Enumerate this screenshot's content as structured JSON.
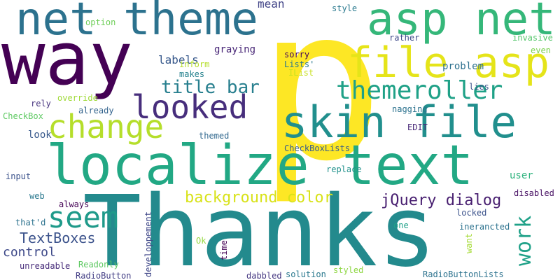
{
  "words": [
    {
      "id": "p",
      "text": "p",
      "color": "#fde725",
      "vertical": false
    },
    {
      "id": "thanks",
      "text": "Thanks",
      "color": "#238a8d",
      "vertical": false
    },
    {
      "id": "localize-text",
      "text": "localize text",
      "color": "#22a884",
      "vertical": false
    },
    {
      "id": "way",
      "text": "way",
      "color": "#440154",
      "vertical": false
    },
    {
      "id": "net-theme",
      "text": "net theme",
      "color": "#2c728e",
      "vertical": false
    },
    {
      "id": "asp-net",
      "text": "asp net",
      "color": "#35b779",
      "vertical": false
    },
    {
      "id": "file-asp",
      "text": "file asp",
      "color": "#e5e419",
      "vertical": false
    },
    {
      "id": "skin-file",
      "text": "skin file",
      "color": "#218f8d",
      "vertical": false
    },
    {
      "id": "change",
      "text": "change",
      "color": "#b5de2b",
      "vertical": false
    },
    {
      "id": "looked",
      "text": "looked",
      "color": "#472e7c",
      "vertical": false
    },
    {
      "id": "themeroller",
      "text": "themeroller",
      "color": "#1fa187",
      "vertical": false
    },
    {
      "id": "seem",
      "text": "seem",
      "color": "#1f9a8a",
      "vertical": false
    },
    {
      "id": "title-bar",
      "text": "title bar",
      "color": "#277f8e",
      "vertical": false
    },
    {
      "id": "background-color",
      "text": "background color",
      "color": "#d8e219",
      "vertical": false
    },
    {
      "id": "jquery-dialog",
      "text": "jQuery dialog",
      "color": "#481f70",
      "vertical": false
    },
    {
      "id": "work",
      "text": "work",
      "color": "#1fa188",
      "vertical": true
    },
    {
      "id": "textboxes",
      "text": "TextBoxes",
      "color": "#3b528b",
      "vertical": false
    },
    {
      "id": "control",
      "text": "control",
      "color": "#3e4989",
      "vertical": false
    },
    {
      "id": "mean",
      "text": "mean",
      "color": "#414487",
      "vertical": false
    },
    {
      "id": "style",
      "text": "style",
      "color": "#29798e",
      "vertical": false
    },
    {
      "id": "option",
      "text": "option",
      "color": "#6ece58",
      "vertical": false
    },
    {
      "id": "labels",
      "text": "labels",
      "color": "#38598c",
      "vertical": false
    },
    {
      "id": "graying",
      "text": "graying",
      "color": "#482677",
      "vertical": false
    },
    {
      "id": "sorry",
      "text": "sorry",
      "color": "#450559",
      "vertical": false
    },
    {
      "id": "rather",
      "text": "rather",
      "color": "#3e4989",
      "vertical": false
    },
    {
      "id": "invasive",
      "text": "invasive",
      "color": "#52c569",
      "vertical": false
    },
    {
      "id": "even",
      "text": "even",
      "color": "#7ad151",
      "vertical": false
    },
    {
      "id": "problem",
      "text": "problem",
      "color": "#2d708e",
      "vertical": false
    },
    {
      "id": "inform",
      "text": "inform",
      "color": "#b5de2b",
      "vertical": false
    },
    {
      "id": "lists",
      "text": "Lists'",
      "color": "#2a788e",
      "vertical": false
    },
    {
      "id": "ilist",
      "text": "IList",
      "color": "#c8e020",
      "vertical": false
    },
    {
      "id": "makes",
      "text": "makes",
      "color": "#26828e",
      "vertical": false
    },
    {
      "id": "lies",
      "text": "lies",
      "color": "#3b528b",
      "vertical": false
    },
    {
      "id": "rely",
      "text": "rely",
      "color": "#46337e",
      "vertical": false
    },
    {
      "id": "override",
      "text": "override",
      "color": "#a0da39",
      "vertical": false
    },
    {
      "id": "already",
      "text": "already",
      "color": "#33638d",
      "vertical": false
    },
    {
      "id": "checkbox",
      "text": "CheckBox",
      "color": "#5ec962",
      "vertical": false
    },
    {
      "id": "nagging",
      "text": "nagging",
      "color": "#2c728e",
      "vertical": false
    },
    {
      "id": "look",
      "text": "look",
      "color": "#38598c",
      "vertical": false
    },
    {
      "id": "edit",
      "text": "EDIT",
      "color": "#482878",
      "vertical": false
    },
    {
      "id": "themed",
      "text": "themed",
      "color": "#31688e",
      "vertical": false
    },
    {
      "id": "checkboxlists",
      "text": "CheckBoxLists",
      "color": "#365c8d",
      "vertical": false
    },
    {
      "id": "replace",
      "text": "replace",
      "color": "#21918c",
      "vertical": false
    },
    {
      "id": "input",
      "text": "input",
      "color": "#3b528b",
      "vertical": false
    },
    {
      "id": "web",
      "text": "web",
      "color": "#2a788e",
      "vertical": false
    },
    {
      "id": "user",
      "text": "user",
      "color": "#2db27d",
      "vertical": false
    },
    {
      "id": "disabled",
      "text": "disabled",
      "color": "#471063",
      "vertical": false
    },
    {
      "id": "always",
      "text": "always",
      "color": "#440154",
      "vertical": false
    },
    {
      "id": "locked",
      "text": "locked",
      "color": "#3b528b",
      "vertical": false
    },
    {
      "id": "thatd",
      "text": "that'd",
      "color": "#2c728e",
      "vertical": false
    },
    {
      "id": "developpement",
      "text": "developpement",
      "color": "#3f4788",
      "vertical": true
    },
    {
      "id": "one",
      "text": "one",
      "color": "#1fa188",
      "vertical": false
    },
    {
      "id": "inerancted",
      "text": "inerancted",
      "color": "#2c728e",
      "vertical": false
    },
    {
      "id": "want",
      "text": "want",
      "color": "#a5db36",
      "vertical": true
    },
    {
      "id": "ok",
      "text": "Ok",
      "color": "#95d840",
      "vertical": false
    },
    {
      "id": "time",
      "text": "time",
      "color": "#440154",
      "vertical": true
    },
    {
      "id": "unreadable",
      "text": "unreadable",
      "color": "#472c7a",
      "vertical": false
    },
    {
      "id": "readonly",
      "text": "Readonly",
      "color": "#5ec962",
      "vertical": false
    },
    {
      "id": "radiobutton",
      "text": "RadioButton",
      "color": "#433e85",
      "vertical": false
    },
    {
      "id": "dabbled",
      "text": "dabbled",
      "color": "#453781",
      "vertical": false
    },
    {
      "id": "solution",
      "text": "solution",
      "color": "#2a788e",
      "vertical": false
    },
    {
      "id": "styled",
      "text": "styled",
      "color": "#8fd744",
      "vertical": false
    },
    {
      "id": "radiobuttonlists",
      "text": "RadioButtonLists",
      "color": "#2c728e",
      "vertical": false
    }
  ]
}
